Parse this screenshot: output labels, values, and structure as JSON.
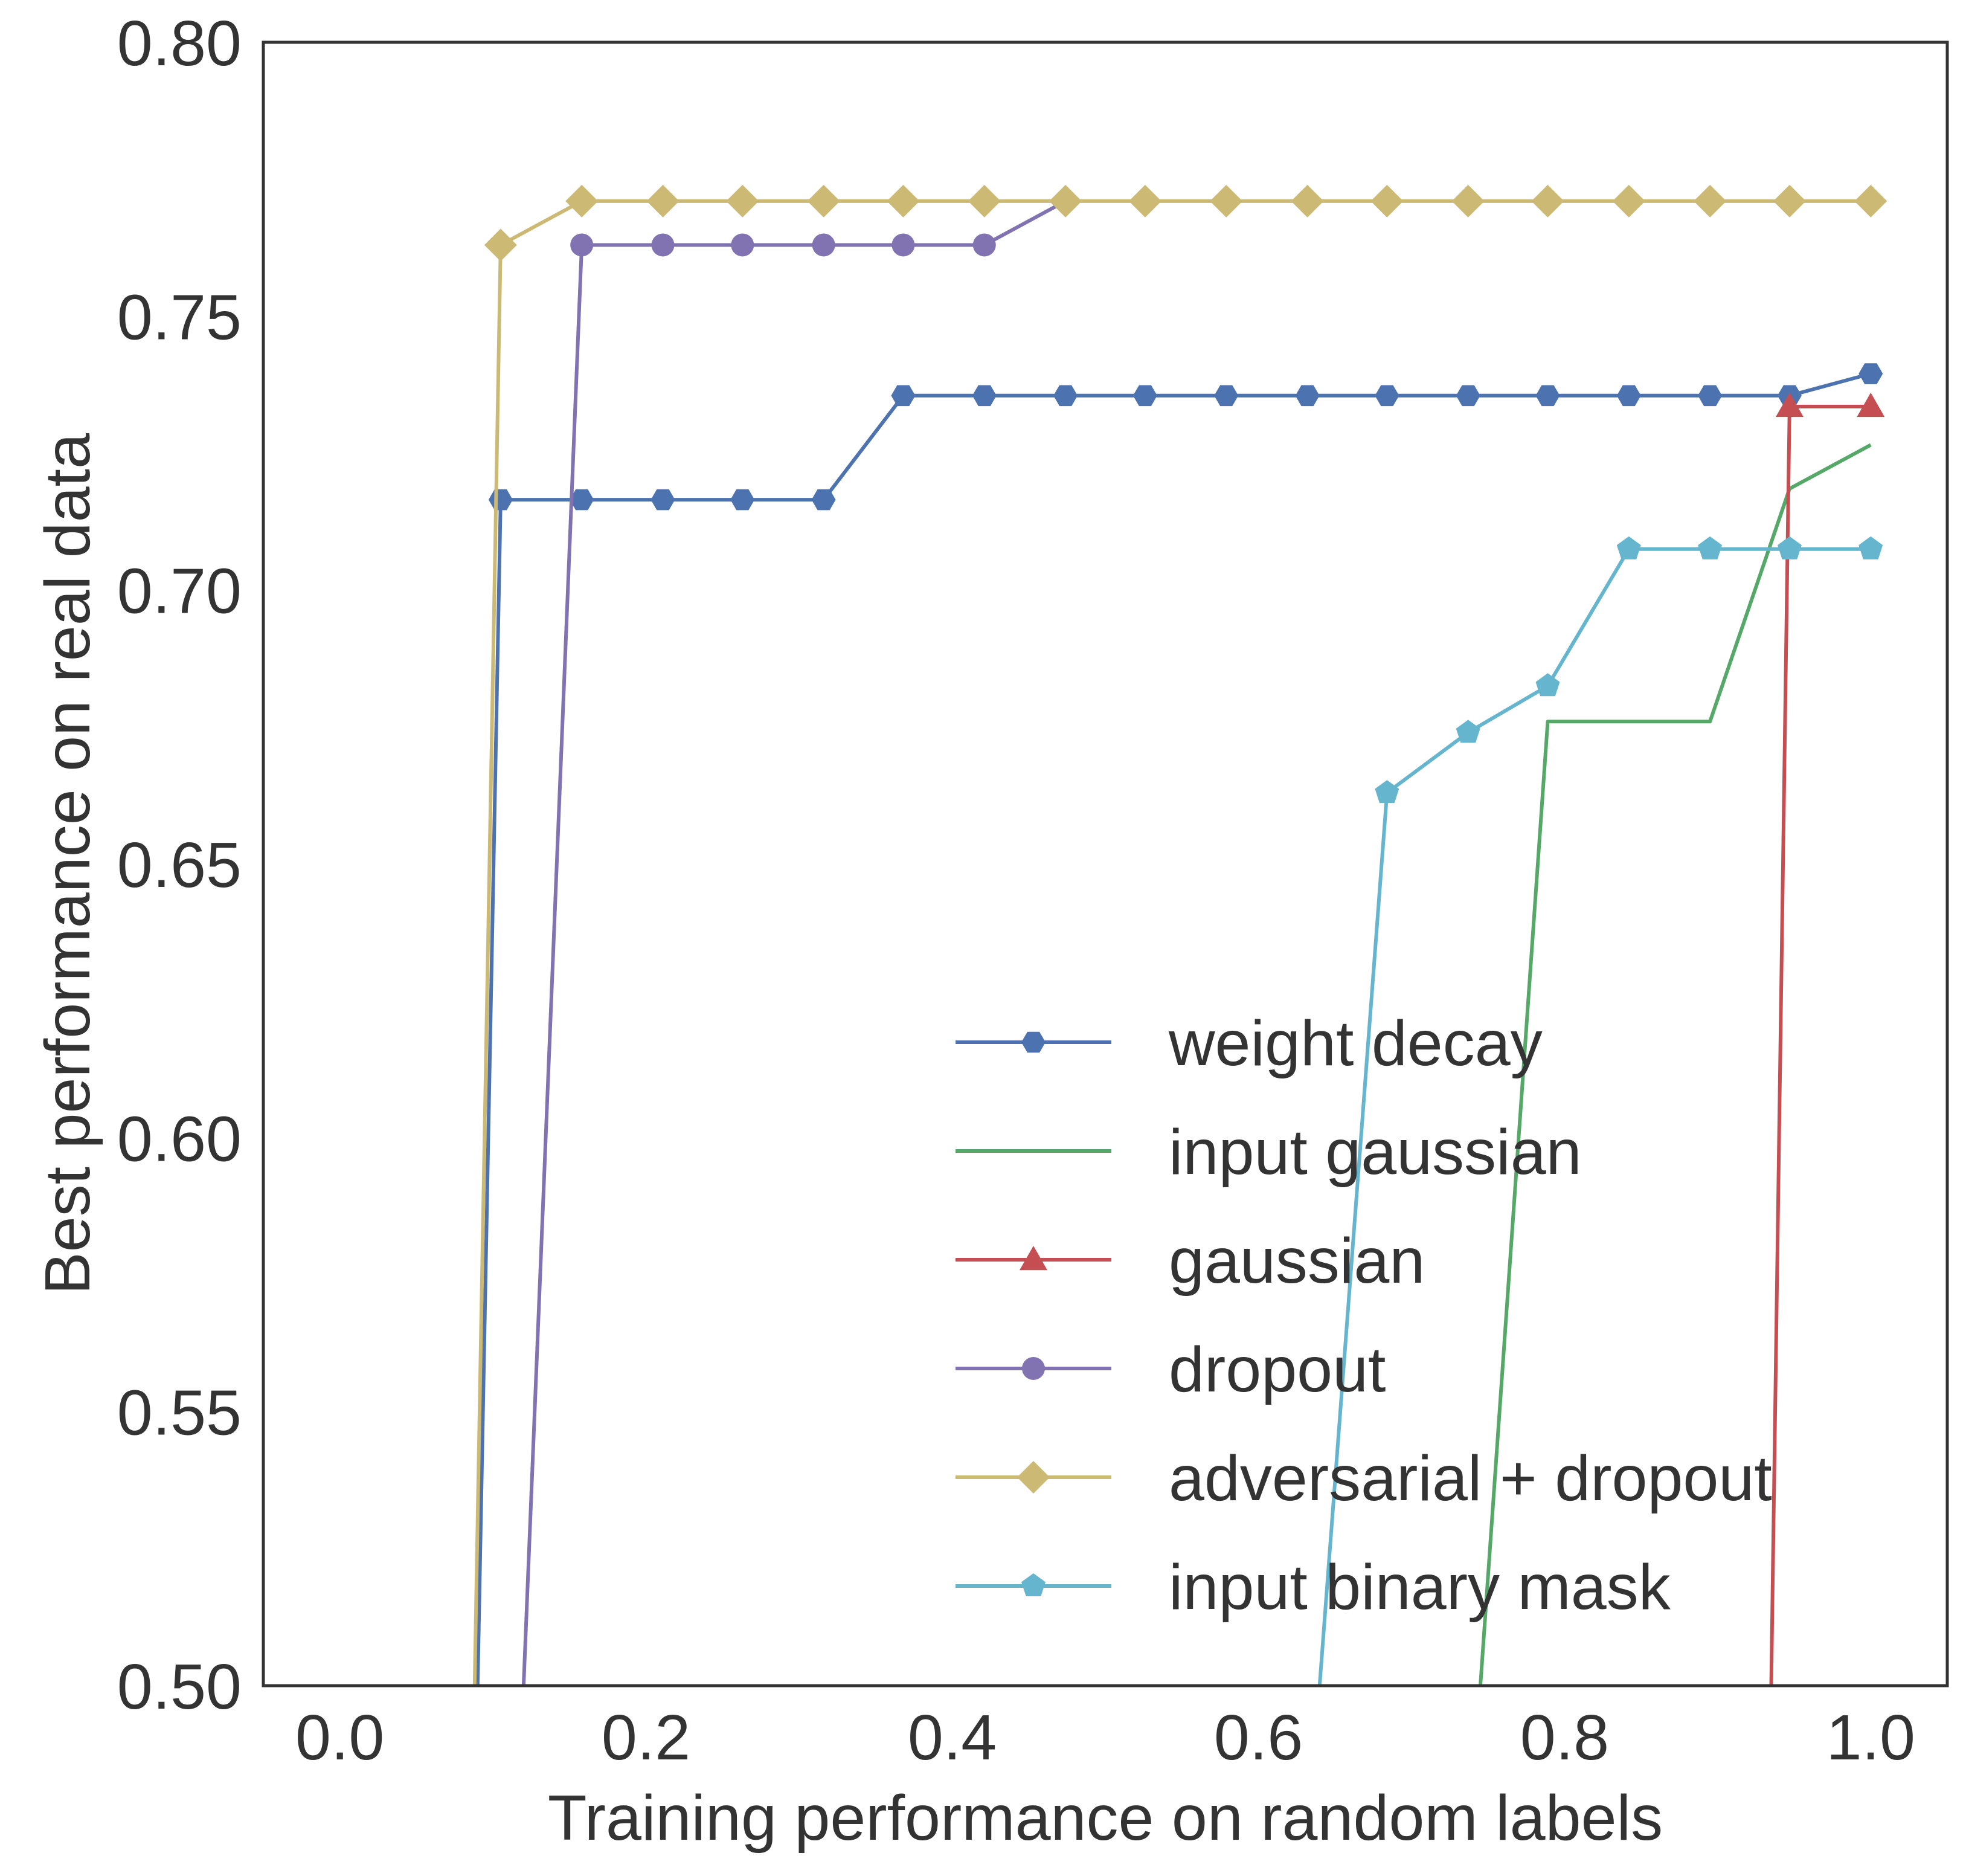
{
  "chart_data": {
    "type": "line",
    "title": "",
    "xlabel": "Training performance on random labels",
    "ylabel": "Best performance on real data",
    "xlim": [
      -0.05,
      1.05
    ],
    "ylim": [
      0.5,
      0.8
    ],
    "xticks": [
      0.0,
      0.2,
      0.4,
      0.6,
      0.8,
      1.0
    ],
    "xtick_labels": [
      "0.0",
      "0.2",
      "0.4",
      "0.6",
      "0.8",
      "1.0"
    ],
    "yticks": [
      0.5,
      0.55,
      0.6,
      0.65,
      0.7,
      0.75,
      0.8
    ],
    "ytick_labels": [
      "0.50",
      "0.55",
      "0.60",
      "0.65",
      "0.70",
      "0.75",
      "0.80"
    ],
    "grid": false,
    "legend_position": "lower-right",
    "series": [
      {
        "name": "weight decay",
        "color": "#4c72b0",
        "marker": "hexagon",
        "x": [
          0.09,
          0.105,
          0.158,
          0.211,
          0.263,
          0.316,
          0.368,
          0.421,
          0.474,
          0.526,
          0.579,
          0.632,
          0.684,
          0.737,
          0.789,
          0.842,
          0.895,
          0.947,
          1.0
        ],
        "y": [
          0.5,
          0.7165,
          0.7165,
          0.7165,
          0.7165,
          0.7165,
          0.7355,
          0.7355,
          0.7355,
          0.7355,
          0.7355,
          0.7355,
          0.7355,
          0.7355,
          0.7355,
          0.7355,
          0.7355,
          0.7355,
          0.7395
        ],
        "marked_from_index": 1
      },
      {
        "name": "input gaussian",
        "color": "#55a868",
        "marker": "none",
        "x": [
          0.745,
          0.789,
          0.842,
          0.895,
          0.947,
          1.0
        ],
        "y": [
          0.5,
          0.676,
          0.676,
          0.676,
          0.7185,
          0.7265
        ],
        "marked_from_index": 99
      },
      {
        "name": "gaussian",
        "color": "#c44e52",
        "marker": "triangle",
        "x": [
          0.935,
          0.947,
          1.0
        ],
        "y": [
          0.5,
          0.7335,
          0.7335
        ],
        "marked_from_index": 1
      },
      {
        "name": "dropout",
        "color": "#8172b2",
        "marker": "circle",
        "x": [
          0.12,
          0.158,
          0.211,
          0.263,
          0.316,
          0.368,
          0.421,
          0.474
        ],
        "y": [
          0.5,
          0.763,
          0.763,
          0.763,
          0.763,
          0.763,
          0.763,
          0.771
        ],
        "marked_from_index": 1,
        "marked_to_index": 6
      },
      {
        "name": "adversarial + dropout",
        "color": "#ccb974",
        "marker": "diamond",
        "x": [
          0.088,
          0.105,
          0.158,
          0.211,
          0.263,
          0.316,
          0.368,
          0.421,
          0.474,
          0.526,
          0.579,
          0.632,
          0.684,
          0.737,
          0.789,
          0.842,
          0.895,
          0.947,
          1.0
        ],
        "y": [
          0.5,
          0.763,
          0.771,
          0.771,
          0.771,
          0.771,
          0.771,
          0.771,
          0.771,
          0.771,
          0.771,
          0.771,
          0.771,
          0.771,
          0.771,
          0.771,
          0.771,
          0.771,
          0.771
        ],
        "marked_from_index": 1
      },
      {
        "name": "input binary mask",
        "color": "#64b5cd",
        "marker": "pentagon",
        "x": [
          0.64,
          0.684,
          0.737,
          0.789,
          0.842,
          0.895,
          0.947,
          1.0
        ],
        "y": [
          0.5,
          0.663,
          0.674,
          0.6825,
          0.7075,
          0.7075,
          0.7075,
          0.7075
        ],
        "marked_from_index": 1
      }
    ]
  }
}
